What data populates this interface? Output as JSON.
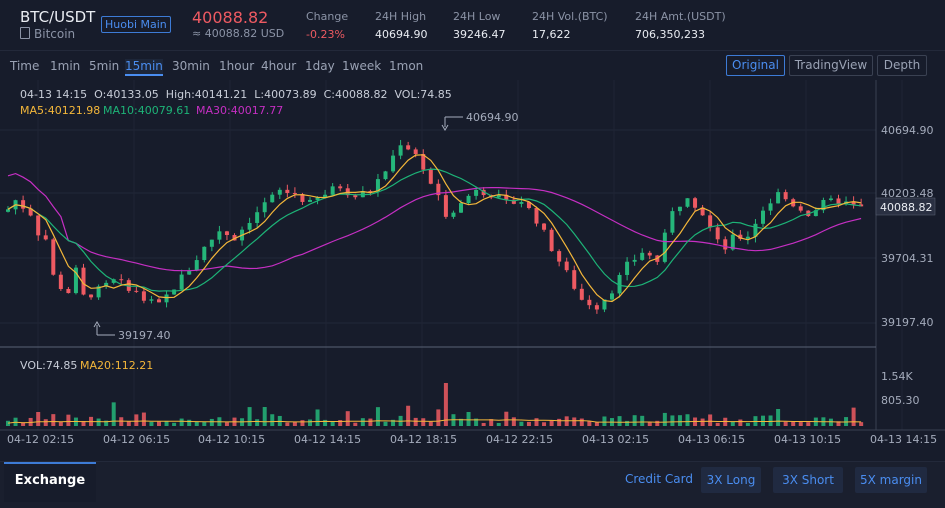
{
  "header": {
    "pair": "BTC/USDT",
    "coin_name": "Bitcoin",
    "market_badge": "Huobi Main",
    "price": "40088.82",
    "price_sub": "≈ 40088.82 USD",
    "stats": [
      {
        "label": "Change",
        "value": "-0.23%"
      },
      {
        "label": "24H High",
        "value": "40694.90"
      },
      {
        "label": "24H Low",
        "value": "39246.47"
      },
      {
        "label": "24H Vol.(BTC)",
        "value": "17,622"
      },
      {
        "label": "24H Amt.(USDT)",
        "value": "706,350,233"
      }
    ]
  },
  "toolbar": {
    "timeframes": [
      "Time",
      "1min",
      "5min",
      "15min",
      "30min",
      "1hour",
      "4hour",
      "1day",
      "1week",
      "1mon"
    ],
    "active_timeframe": "15min",
    "views": [
      "Original",
      "TradingView",
      "Depth"
    ],
    "active_view": "Original"
  },
  "chart_info": {
    "ohlc_line": "04-13 14:15  O:40133.05  High:40141.21  L:40073.89  C:40088.82  VOL:74.85",
    "ma5": "MA5:40121.98",
    "ma10": "MA10:40079.61",
    "ma30": "MA30:40017.77",
    "vol": "VOL:74.85",
    "ma20": "MA20:112.21"
  },
  "chart_data": {
    "type": "candlestick",
    "price_axis_ticks": [
      "40694.90",
      "40203.48",
      "39704.31",
      "39197.40"
    ],
    "current_price_label": "40088.82",
    "high_marker": "40694.90",
    "low_marker": "39197.40",
    "volume_axis_ticks": [
      "1.54K",
      "805.30"
    ],
    "time_ticks": [
      "04-12 02:15",
      "04-12 06:15",
      "04-12 10:15",
      "04-12 14:15",
      "04-12 18:15",
      "04-12 22:15",
      "04-13 02:15",
      "04-13 06:15",
      "04-13 10:15",
      "04-13 14:15"
    ],
    "close_path": [
      [
        0,
        40080
      ],
      [
        1,
        40150
      ],
      [
        3,
        40050
      ],
      [
        4,
        39900
      ],
      [
        5,
        39850
      ],
      [
        6,
        39560
      ],
      [
        7,
        39480
      ],
      [
        8,
        39440
      ],
      [
        9,
        39600
      ],
      [
        10,
        39400
      ],
      [
        12,
        39450
      ],
      [
        14,
        39520
      ],
      [
        16,
        39480
      ],
      [
        18,
        39380
      ],
      [
        20,
        39330
      ],
      [
        22,
        39480
      ],
      [
        24,
        39620
      ],
      [
        26,
        39780
      ],
      [
        28,
        39920
      ],
      [
        30,
        39860
      ],
      [
        32,
        40000
      ],
      [
        34,
        40120
      ],
      [
        36,
        40220
      ],
      [
        38,
        40200
      ],
      [
        40,
        40120
      ],
      [
        42,
        40200
      ],
      [
        44,
        40260
      ],
      [
        46,
        40180
      ],
      [
        48,
        40230
      ],
      [
        50,
        40380
      ],
      [
        52,
        40600
      ],
      [
        54,
        40520
      ],
      [
        56,
        40270
      ],
      [
        58,
        40050
      ],
      [
        60,
        40120
      ],
      [
        62,
        40250
      ],
      [
        64,
        40200
      ],
      [
        66,
        40120
      ],
      [
        68,
        40150
      ],
      [
        70,
        40000
      ],
      [
        72,
        39780
      ],
      [
        74,
        39580
      ],
      [
        76,
        39380
      ],
      [
        78,
        39330
      ],
      [
        80,
        39460
      ],
      [
        82,
        39640
      ],
      [
        84,
        39750
      ],
      [
        86,
        39680
      ],
      [
        88,
        40050
      ],
      [
        90,
        40200
      ],
      [
        92,
        40050
      ],
      [
        94,
        39820
      ],
      [
        95,
        39780
      ],
      [
        96,
        39850
      ],
      [
        98,
        39880
      ],
      [
        100,
        40080
      ],
      [
        102,
        40200
      ],
      [
        104,
        40120
      ],
      [
        106,
        40050
      ],
      [
        108,
        40120
      ],
      [
        110,
        40150
      ],
      [
        112,
        40100
      ],
      [
        113,
        40088
      ]
    ],
    "candles": 114
  },
  "bottom_bar": {
    "tab": "Exchange",
    "credit_card": "Credit Card",
    "buttons": [
      "3X Long",
      "3X Short",
      "5X margin"
    ]
  },
  "colors": {
    "up": "#25b67a",
    "down": "#ee5a62",
    "ma5": "#f4b73a",
    "ma10": "#1db377",
    "ma30": "#c52fc3",
    "accent": "#4a8df0"
  }
}
